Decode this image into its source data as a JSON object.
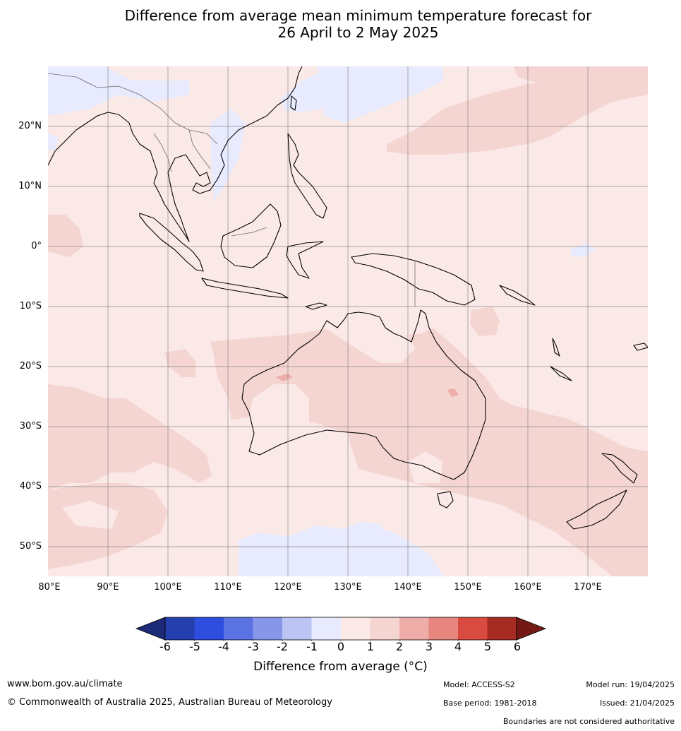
{
  "header": {
    "title_line1": "Difference from average mean minimum temperature forecast for",
    "title_line2": "26 April to 2 May 2025"
  },
  "map": {
    "region": "Indian Ocean, Maritime Continent, Australia, New Zealand, western Pacific",
    "lat_ticks": [
      "20°N",
      "10°N",
      "0°",
      "10°S",
      "20°S",
      "30°S",
      "40°S",
      "50°S"
    ],
    "lon_ticks": [
      "80°E",
      "90°E",
      "100°E",
      "110°E",
      "120°E",
      "130°E",
      "140°E",
      "150°E",
      "160°E",
      "170°E"
    ],
    "lat_range": [
      -55,
      30
    ],
    "lon_range": [
      80,
      180
    ],
    "grid": true,
    "anomaly_areas": [
      {
        "category": "0 to 1",
        "color": "#fbe9e7",
        "note": "background covering most of map"
      },
      {
        "category": "1 to 2",
        "color": "#f5d5d2",
        "note": "inland Australia, southern Indian Ocean, Tasman Sea, NW Pacific"
      },
      {
        "category": "2 to 3",
        "color": "#eeada9",
        "note": "small patches in Western Australia and central Australia"
      },
      {
        "category": "-1 to 0",
        "color": "#e7ebfd",
        "note": "South China Sea, south of Australia near 50°S, north-west corner"
      }
    ]
  },
  "colorbar": {
    "ticks": [
      "-6",
      "-5",
      "-4",
      "-3",
      "-2",
      "-1",
      "0",
      "1",
      "2",
      "3",
      "4",
      "5",
      "6"
    ],
    "colors": [
      "#1c2a78",
      "#253fae",
      "#2e4ee0",
      "#5b72e2",
      "#8896ea",
      "#bcc4f4",
      "#e7ebfd",
      "#fbe9e7",
      "#f5d5d2",
      "#eeada9",
      "#e7857f",
      "#d94a41",
      "#a62b22",
      "#731a14"
    ],
    "label": "Difference from average (°C)"
  },
  "footer": {
    "website": "www.bom.gov.au/climate",
    "copyright": "© Commonwealth of Australia 2025, Australian Bureau of Meteorology",
    "model": "Model: ACCESS-S2",
    "base_period": "Base period: 1981-2018",
    "model_run": "Model run: 19/04/2025",
    "issued": "Issued: 21/04/2025",
    "disclaimer": "Boundaries are not considered authoritative"
  }
}
